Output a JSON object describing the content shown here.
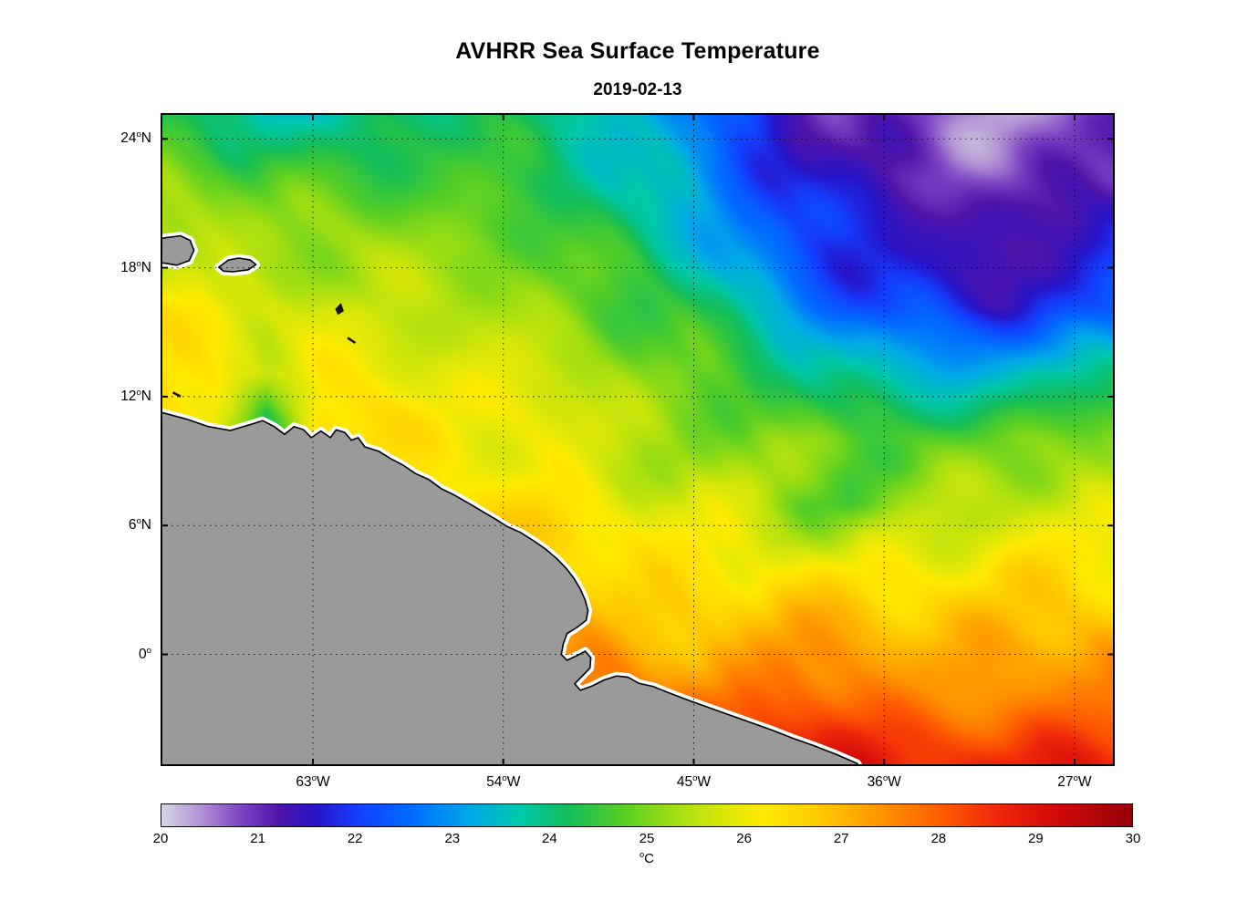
{
  "figure": {
    "title": "AVHRR Sea Surface Temperature",
    "subtitle": "2019-02-13"
  },
  "chart_data": {
    "type": "heatmap",
    "title": "AVHRR Sea Surface Temperature",
    "subtitle": "2019-02-13",
    "x_axis": {
      "lon_min": -70.2,
      "lon_max": -25.1,
      "ticks": [
        {
          "label": "63°W",
          "lon": -63
        },
        {
          "label": "54°W",
          "lon": -54
        },
        {
          "label": "45°W",
          "lon": -45
        },
        {
          "label": "36°W",
          "lon": -36
        },
        {
          "label": "27°W",
          "lon": -27
        }
      ]
    },
    "y_axis": {
      "lat_min": -5.2,
      "lat_max": 25.2,
      "ticks": [
        {
          "label": "24°N",
          "lat": 24
        },
        {
          "label": "18°N",
          "lat": 18
        },
        {
          "label": "12°N",
          "lat": 12
        },
        {
          "label": "6°N",
          "lat": 6
        },
        {
          "label": "0°",
          "lat": 0
        }
      ]
    },
    "colorbar": {
      "label": "°C",
      "min": 20,
      "max": 30,
      "ticks": [
        20,
        21,
        22,
        23,
        24,
        25,
        26,
        27,
        28,
        29,
        30
      ],
      "stops": [
        {
          "t": 0.0,
          "c": "#d6d6e4"
        },
        {
          "t": 0.04,
          "c": "#b294d4"
        },
        {
          "t": 0.08,
          "c": "#8046c4"
        },
        {
          "t": 0.12,
          "c": "#5014aa"
        },
        {
          "t": 0.16,
          "c": "#2814c8"
        },
        {
          "t": 0.2,
          "c": "#143cff"
        },
        {
          "t": 0.26,
          "c": "#006eff"
        },
        {
          "t": 0.32,
          "c": "#00aae6"
        },
        {
          "t": 0.37,
          "c": "#00c8aa"
        },
        {
          "t": 0.42,
          "c": "#14be5a"
        },
        {
          "t": 0.47,
          "c": "#50cd28"
        },
        {
          "t": 0.52,
          "c": "#96dc14"
        },
        {
          "t": 0.57,
          "c": "#d2e60a"
        },
        {
          "t": 0.62,
          "c": "#ffeb00"
        },
        {
          "t": 0.68,
          "c": "#ffc800"
        },
        {
          "t": 0.74,
          "c": "#ff9600"
        },
        {
          "t": 0.8,
          "c": "#ff5f00"
        },
        {
          "t": 0.86,
          "c": "#f0280a"
        },
        {
          "t": 0.92,
          "c": "#d20a0a"
        },
        {
          "t": 1.0,
          "c": "#96000a"
        }
      ]
    },
    "sst_grid": {
      "units": "°C",
      "lons": [
        -70,
        -67.5,
        -65,
        -62.5,
        -60,
        -57.5,
        -55,
        -52.5,
        -50,
        -47.5,
        -45,
        -42.5,
        -40,
        -37.5,
        -35,
        -32.5,
        -30,
        -27.5,
        -25
      ],
      "lats_north_to_south": [
        25,
        22,
        19,
        16,
        13,
        10,
        7,
        4,
        1,
        -2,
        -5
      ],
      "values": [
        [
          24.2,
          24.0,
          23.9,
          23.8,
          23.9,
          24.0,
          24.1,
          24.0,
          23.6,
          23.2,
          22.6,
          22.0,
          21.6,
          21.2,
          20.9,
          20.7,
          20.6,
          20.7,
          21.0
        ],
        [
          25.0,
          24.9,
          24.7,
          24.6,
          24.5,
          24.5,
          24.4,
          24.2,
          23.9,
          23.5,
          22.9,
          22.3,
          21.8,
          21.4,
          21.1,
          20.9,
          20.9,
          21.0,
          21.2
        ],
        [
          25.6,
          25.5,
          25.4,
          25.3,
          25.1,
          25.0,
          24.9,
          24.7,
          24.4,
          24.0,
          23.5,
          22.9,
          22.3,
          21.8,
          21.5,
          21.3,
          21.2,
          21.4,
          21.6
        ],
        [
          26.0,
          25.9,
          25.9,
          25.8,
          25.7,
          25.5,
          25.3,
          25.1,
          24.9,
          24.5,
          24.1,
          23.6,
          23.0,
          22.5,
          22.1,
          21.9,
          21.9,
          22.1,
          22.4
        ],
        [
          26.2,
          26.2,
          25.6,
          26.1,
          26.0,
          25.9,
          25.8,
          25.6,
          25.4,
          25.1,
          24.8,
          24.4,
          24.0,
          23.6,
          23.3,
          23.2,
          23.3,
          23.6,
          24.0
        ],
        [
          26.5,
          26.4,
          23.2,
          26.3,
          26.4,
          26.3,
          26.2,
          26.0,
          25.8,
          25.6,
          25.3,
          25.1,
          24.9,
          24.7,
          24.6,
          24.6,
          24.7,
          24.9,
          25.1
        ],
        [
          26.8,
          26.8,
          26.7,
          26.7,
          26.6,
          26.6,
          26.5,
          26.3,
          26.1,
          25.9,
          25.7,
          25.4,
          25.0,
          24.6,
          25.0,
          25.4,
          25.6,
          25.7,
          25.8
        ],
        [
          27.2,
          27.2,
          27.1,
          27.1,
          27.0,
          27.0,
          26.9,
          26.8,
          26.7,
          26.5,
          26.3,
          26.2,
          26.1,
          26.0,
          26.1,
          26.2,
          26.3,
          26.3,
          26.3
        ],
        [
          27.6,
          27.6,
          27.6,
          27.5,
          27.5,
          27.4,
          27.4,
          27.3,
          27.2,
          27.1,
          27.0,
          27.0,
          27.1,
          27.0,
          26.9,
          26.8,
          26.8,
          26.9,
          27.0
        ],
        [
          28.1,
          28.1,
          28.1,
          28.0,
          28.0,
          28.0,
          27.9,
          27.9,
          27.8,
          27.8,
          27.9,
          28.0,
          28.1,
          28.0,
          27.8,
          27.7,
          27.6,
          27.7,
          27.8
        ],
        [
          28.5,
          28.5,
          28.5,
          28.5,
          28.4,
          28.4,
          28.4,
          28.4,
          28.4,
          28.5,
          28.6,
          28.8,
          28.9,
          28.8,
          28.6,
          28.5,
          28.5,
          28.6,
          28.7
        ]
      ]
    },
    "land": {
      "fill": "#9a9a9a",
      "coast_line": "#000000",
      "coast_fringe": "#ffffff",
      "polygons": {
        "south_america": [
          [
            -0.03,
            0.44
          ],
          [
            0.0,
            0.458
          ],
          [
            0.028,
            0.469
          ],
          [
            0.05,
            0.48
          ],
          [
            0.073,
            0.486
          ],
          [
            0.092,
            0.478
          ],
          [
            0.107,
            0.471
          ],
          [
            0.119,
            0.48
          ],
          [
            0.13,
            0.492
          ],
          [
            0.14,
            0.48
          ],
          [
            0.15,
            0.485
          ],
          [
            0.158,
            0.497
          ],
          [
            0.168,
            0.487
          ],
          [
            0.178,
            0.497
          ],
          [
            0.184,
            0.485
          ],
          [
            0.193,
            0.489
          ],
          [
            0.2,
            0.501
          ],
          [
            0.207,
            0.497
          ],
          [
            0.214,
            0.511
          ],
          [
            0.229,
            0.518
          ],
          [
            0.241,
            0.529
          ],
          [
            0.254,
            0.539
          ],
          [
            0.267,
            0.552
          ],
          [
            0.281,
            0.561
          ],
          [
            0.294,
            0.575
          ],
          [
            0.308,
            0.585
          ],
          [
            0.321,
            0.596
          ],
          [
            0.336,
            0.609
          ],
          [
            0.35,
            0.621
          ],
          [
            0.363,
            0.633
          ],
          [
            0.377,
            0.642
          ],
          [
            0.391,
            0.655
          ],
          [
            0.403,
            0.667
          ],
          [
            0.415,
            0.682
          ],
          [
            0.425,
            0.697
          ],
          [
            0.433,
            0.712
          ],
          [
            0.44,
            0.729
          ],
          [
            0.445,
            0.746
          ],
          [
            0.448,
            0.762
          ],
          [
            0.446,
            0.777
          ],
          [
            0.436,
            0.788
          ],
          [
            0.426,
            0.797
          ],
          [
            0.422,
            0.813
          ],
          [
            0.42,
            0.829
          ],
          [
            0.426,
            0.838
          ],
          [
            0.436,
            0.831
          ],
          [
            0.445,
            0.824
          ],
          [
            0.451,
            0.834
          ],
          [
            0.45,
            0.85
          ],
          [
            0.442,
            0.862
          ],
          [
            0.434,
            0.874
          ],
          [
            0.44,
            0.884
          ],
          [
            0.453,
            0.877
          ],
          [
            0.465,
            0.868
          ],
          [
            0.478,
            0.862
          ],
          [
            0.49,
            0.864
          ],
          [
            0.501,
            0.873
          ],
          [
            0.516,
            0.878
          ],
          [
            0.533,
            0.888
          ],
          [
            0.553,
            0.899
          ],
          [
            0.574,
            0.91
          ],
          [
            0.597,
            0.922
          ],
          [
            0.618,
            0.933
          ],
          [
            0.641,
            0.945
          ],
          [
            0.662,
            0.957
          ],
          [
            0.685,
            0.969
          ],
          [
            0.708,
            0.982
          ],
          [
            0.73,
            0.996
          ],
          [
            0.742,
            1.03
          ],
          [
            -0.03,
            1.03
          ]
        ],
        "island_west": [
          [
            -0.02,
            0.196
          ],
          [
            0.01,
            0.19
          ],
          [
            0.021,
            0.188
          ],
          [
            0.031,
            0.195
          ],
          [
            0.035,
            0.21
          ],
          [
            0.03,
            0.226
          ],
          [
            0.017,
            0.233
          ],
          [
            0.005,
            0.23
          ],
          [
            -0.02,
            0.225
          ]
        ],
        "island_east": [
          [
            0.061,
            0.236
          ],
          [
            0.071,
            0.225
          ],
          [
            0.082,
            0.222
          ],
          [
            0.094,
            0.225
          ],
          [
            0.1,
            0.232
          ],
          [
            0.092,
            0.24
          ],
          [
            0.076,
            0.243
          ],
          [
            0.066,
            0.242
          ]
        ]
      },
      "islets": [
        [
          [
            0.1836,
            0.3
          ],
          [
            0.189,
            0.292
          ],
          [
            0.1915,
            0.303
          ],
          [
            0.186,
            0.308
          ]
        ],
        [
          [
            0.196,
            0.344
          ],
          [
            0.204,
            0.352
          ]
        ],
        [
          [
            0.013,
            0.428
          ],
          [
            0.021,
            0.434
          ]
        ]
      ]
    }
  }
}
